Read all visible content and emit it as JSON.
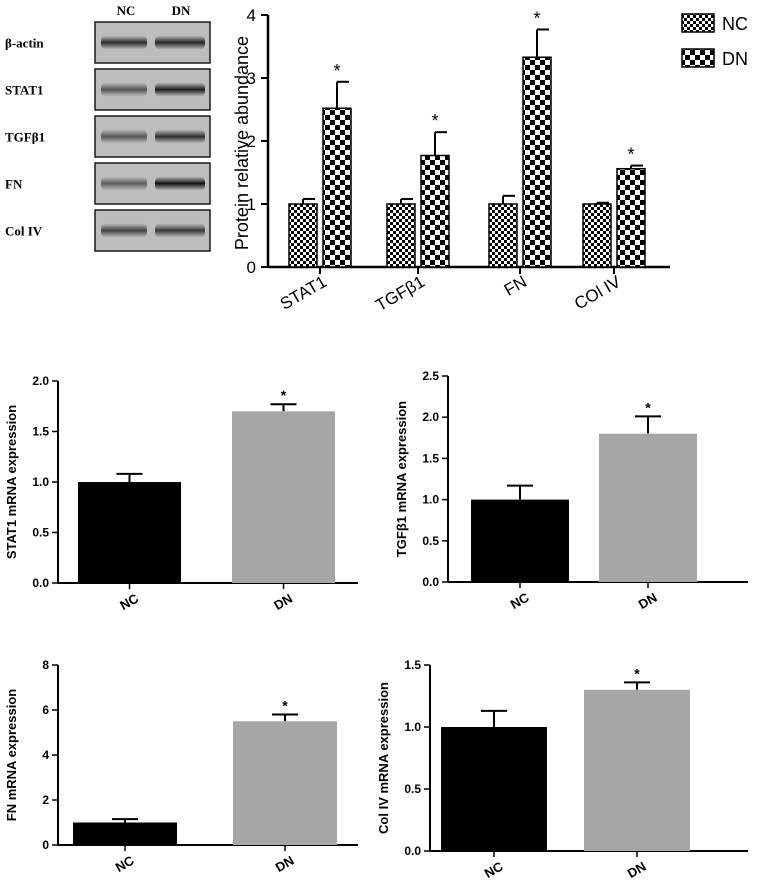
{
  "western_blot": {
    "lane_labels": [
      "NC",
      "DN"
    ],
    "bands": [
      {
        "label": "β-actin",
        "nc_intensity": 0.75,
        "dn_intensity": 0.8
      },
      {
        "label": "STAT1",
        "nc_intensity": 0.55,
        "dn_intensity": 0.85
      },
      {
        "label": "TGFβ1",
        "nc_intensity": 0.55,
        "dn_intensity": 0.75
      },
      {
        "label": "FN",
        "nc_intensity": 0.5,
        "dn_intensity": 0.9
      },
      {
        "label": "Col IV",
        "nc_intensity": 0.65,
        "dn_intensity": 0.7
      }
    ]
  },
  "chart_data": [
    {
      "id": "protein",
      "type": "bar",
      "ylabel": "Protein relative abundance",
      "categories": [
        "STAT1",
        "TGFβ1",
        "FN",
        "COl IV"
      ],
      "series": [
        {
          "name": "NC",
          "values": [
            1.0,
            1.0,
            1.0,
            1.0
          ],
          "errors": [
            0.08,
            0.08,
            0.13,
            0.02
          ],
          "pattern": "checker-small"
        },
        {
          "name": "DN",
          "values": [
            2.52,
            1.77,
            3.33,
            1.56
          ],
          "errors": [
            0.42,
            0.37,
            0.44,
            0.05
          ],
          "pattern": "checker-large",
          "significance": [
            "*",
            "*",
            "*",
            "*"
          ]
        }
      ],
      "ylim": [
        0,
        4
      ],
      "yticks": [
        0,
        1,
        2,
        3,
        4
      ],
      "legend": "top-right",
      "grid": false
    },
    {
      "id": "stat1_mrna",
      "type": "bar",
      "ylabel": "STAT1 mRNA expression",
      "categories": [
        "NC",
        "DN"
      ],
      "values": [
        1.0,
        1.7
      ],
      "errors": [
        0.08,
        0.07
      ],
      "colors": [
        "#000000",
        "#a6a6a6"
      ],
      "significance": [
        "",
        "*"
      ],
      "ylim": [
        0,
        2.0
      ],
      "yticks": [
        "0.0",
        "0.5",
        "1.0",
        "1.5",
        "2.0"
      ],
      "grid": false
    },
    {
      "id": "tgfb1_mrna",
      "type": "bar",
      "ylabel": "TGFβ1 mRNA expression",
      "categories": [
        "NC",
        "DN"
      ],
      "values": [
        1.0,
        1.8
      ],
      "errors": [
        0.17,
        0.21
      ],
      "colors": [
        "#000000",
        "#a6a6a6"
      ],
      "significance": [
        "",
        "*"
      ],
      "ylim": [
        0,
        2.5
      ],
      "yticks": [
        "0.0",
        "0.5",
        "1.0",
        "1.5",
        "2.0",
        "2.5"
      ],
      "grid": false
    },
    {
      "id": "fn_mrna",
      "type": "bar",
      "ylabel": "FN mRNA expression",
      "categories": [
        "NC",
        "DN"
      ],
      "values": [
        1.0,
        5.5
      ],
      "errors": [
        0.15,
        0.3
      ],
      "colors": [
        "#000000",
        "#a6a6a6"
      ],
      "significance": [
        "",
        "*"
      ],
      "ylim": [
        0,
        8
      ],
      "yticks": [
        "0",
        "2",
        "4",
        "6",
        "8"
      ],
      "grid": false
    },
    {
      "id": "col4_mrna",
      "type": "bar",
      "ylabel": "Col IV mRNA expression",
      "categories": [
        "NC",
        "DN"
      ],
      "values": [
        1.0,
        1.3
      ],
      "errors": [
        0.13,
        0.06
      ],
      "colors": [
        "#000000",
        "#a6a6a6"
      ],
      "significance": [
        "",
        "*"
      ],
      "ylim": [
        0,
        1.5
      ],
      "yticks": [
        "0.0",
        "0.5",
        "1.0",
        "1.5"
      ],
      "grid": false
    }
  ]
}
